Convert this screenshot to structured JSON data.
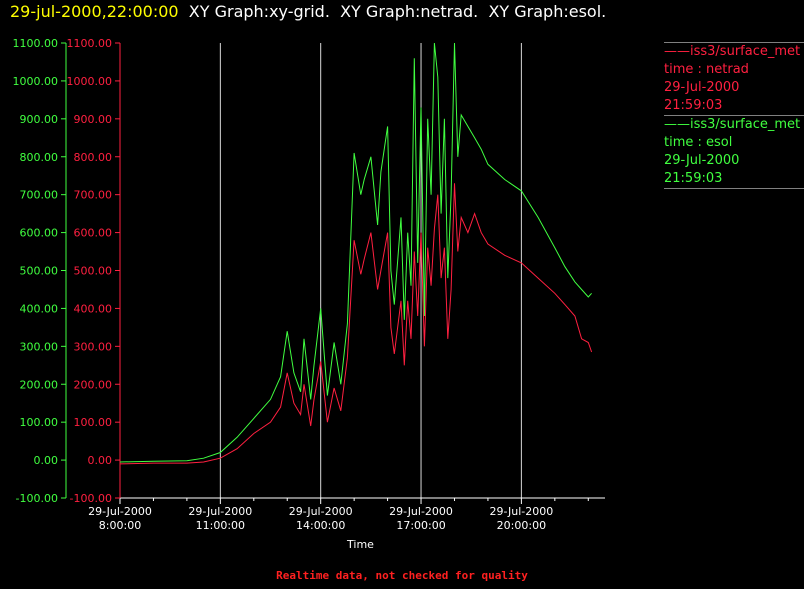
{
  "header": {
    "datetime": "29-jul-2000,22:00:00",
    "graphs": [
      "XY Graph:xy-grid.",
      "XY Graph:netrad.",
      "XY Graph:esol."
    ]
  },
  "legend": [
    {
      "source": "iss3/surface_met",
      "line1": "time : netrad",
      "line2": "29-Jul-2000",
      "line3": "21:59:03",
      "color": "#ff2040"
    },
    {
      "source": "iss3/surface_met",
      "line1": "time : esol",
      "line2": "29-Jul-2000",
      "line3": "21:59:03",
      "color": "#40ff40"
    }
  ],
  "footer": "Realtime data, not checked for quality",
  "colors": {
    "netrad": "#ff2040",
    "esol": "#40ff40",
    "grid": "#ffffff",
    "axis": "#ffffff",
    "text": "#ffffff"
  },
  "chart_data": {
    "type": "line",
    "xlabel": "Time",
    "x_ticks": [
      {
        "date": "29-Jul-2000",
        "time": "8:00:00",
        "hour": 8
      },
      {
        "date": "29-Jul-2000",
        "time": "11:00:00",
        "hour": 11
      },
      {
        "date": "29-Jul-2000",
        "time": "14:00:00",
        "hour": 14
      },
      {
        "date": "29-Jul-2000",
        "time": "17:00:00",
        "hour": 17
      },
      {
        "date": "29-Jul-2000",
        "time": "20:00:00",
        "hour": 20
      }
    ],
    "xlim": [
      8.0,
      22.5
    ],
    "ylim": [
      -100,
      1100
    ],
    "y_ticks": [
      "-100.00",
      "0.00",
      "100.00",
      "200.00",
      "300.00",
      "400.00",
      "500.00",
      "600.00",
      "700.00",
      "800.00",
      "900.00",
      "1000.00",
      "1100.00"
    ],
    "y_tick_values": [
      -100,
      0,
      100,
      200,
      300,
      400,
      500,
      600,
      700,
      800,
      900,
      1000,
      1100
    ],
    "grid": "vertical at major x ticks",
    "series": [
      {
        "name": "netrad",
        "x": [
          8.0,
          9.0,
          10.0,
          10.5,
          11.0,
          11.5,
          12.0,
          12.5,
          12.8,
          13.0,
          13.2,
          13.4,
          13.5,
          13.7,
          13.8,
          14.0,
          14.2,
          14.4,
          14.6,
          14.8,
          15.0,
          15.2,
          15.3,
          15.5,
          15.7,
          15.8,
          16.0,
          16.1,
          16.2,
          16.4,
          16.5,
          16.6,
          16.7,
          16.8,
          16.9,
          17.0,
          17.1,
          17.2,
          17.3,
          17.4,
          17.5,
          17.6,
          17.7,
          17.8,
          17.9,
          18.0,
          18.1,
          18.2,
          18.4,
          18.6,
          18.8,
          19.0,
          19.5,
          20.0,
          20.5,
          21.0,
          21.3,
          21.6,
          21.8,
          22.0,
          22.1
        ],
        "y": [
          -10,
          -8,
          -8,
          -5,
          5,
          30,
          70,
          100,
          140,
          230,
          150,
          120,
          200,
          90,
          160,
          260,
          100,
          190,
          130,
          270,
          580,
          490,
          530,
          600,
          450,
          500,
          600,
          350,
          280,
          420,
          250,
          420,
          320,
          550,
          380,
          600,
          300,
          560,
          460,
          610,
          700,
          480,
          560,
          320,
          450,
          730,
          550,
          640,
          600,
          650,
          600,
          570,
          540,
          520,
          480,
          440,
          410,
          380,
          320,
          310,
          285
        ]
      },
      {
        "name": "esol",
        "x": [
          8.0,
          9.0,
          10.0,
          10.5,
          11.0,
          11.5,
          12.0,
          12.5,
          12.8,
          13.0,
          13.2,
          13.4,
          13.5,
          13.7,
          13.8,
          14.0,
          14.2,
          14.4,
          14.6,
          14.8,
          15.0,
          15.2,
          15.3,
          15.5,
          15.7,
          15.8,
          16.0,
          16.1,
          16.2,
          16.4,
          16.5,
          16.6,
          16.7,
          16.8,
          16.9,
          17.0,
          17.1,
          17.2,
          17.3,
          17.4,
          17.5,
          17.6,
          17.7,
          17.8,
          17.9,
          18.0,
          18.1,
          18.2,
          18.4,
          18.6,
          18.8,
          19.0,
          19.5,
          20.0,
          20.5,
          21.0,
          21.3,
          21.6,
          21.8,
          22.0,
          22.1
        ],
        "y": [
          -5,
          -3,
          -2,
          5,
          20,
          60,
          110,
          160,
          220,
          340,
          230,
          180,
          320,
          160,
          250,
          400,
          170,
          310,
          200,
          360,
          810,
          700,
          740,
          800,
          620,
          760,
          880,
          500,
          410,
          640,
          370,
          600,
          460,
          1060,
          520,
          930,
          380,
          900,
          700,
          1100,
          1010,
          650,
          900,
          480,
          700,
          1100,
          800,
          910,
          880,
          850,
          820,
          780,
          740,
          710,
          640,
          560,
          510,
          470,
          450,
          430,
          440
        ]
      }
    ]
  }
}
